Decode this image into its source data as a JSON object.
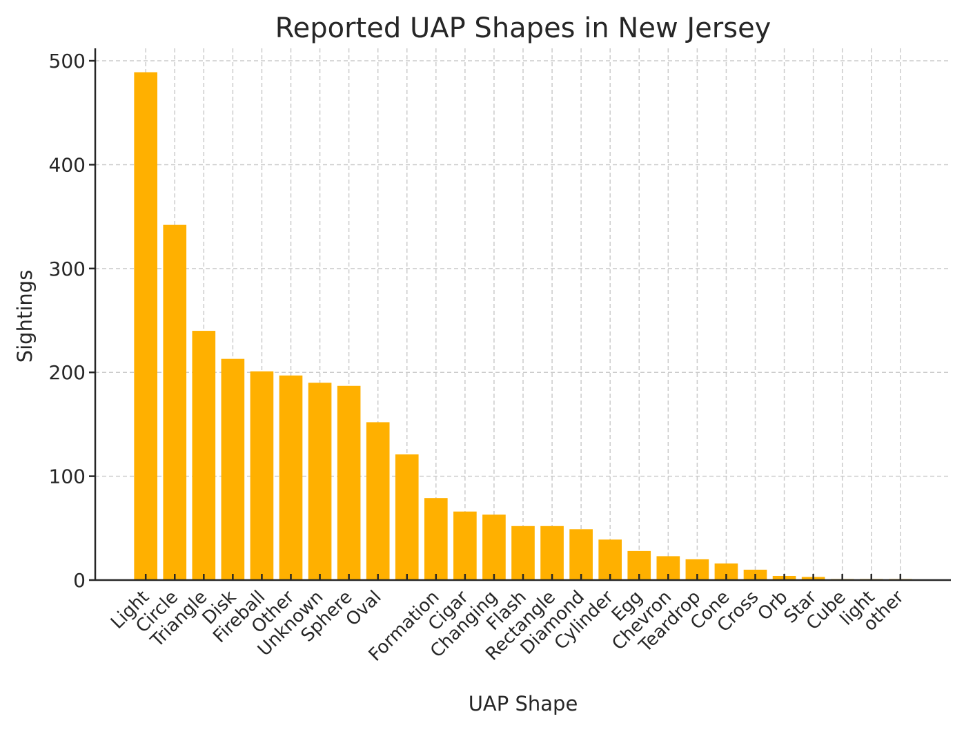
{
  "chart_data": {
    "type": "bar",
    "title": "Reported UAP Shapes in New Jersey",
    "xlabel": "UAP Shape",
    "ylabel": "Sightings",
    "categories": [
      "Light",
      "Circle",
      "Triangle",
      "Disk",
      "Fireball",
      "Other",
      "Unknown",
      "Sphere",
      "Oval",
      "",
      "Formation",
      "Cigar",
      "Changing",
      "Flash",
      "Rectangle",
      "Diamond",
      "Cylinder",
      "Egg",
      "Chevron",
      "Teardrop",
      "Cone",
      "Cross",
      "Orb",
      "Star",
      "Cube",
      "light",
      "other"
    ],
    "values": [
      489,
      342,
      240,
      213,
      201,
      197,
      190,
      187,
      152,
      121,
      79,
      66,
      63,
      52,
      52,
      49,
      39,
      28,
      23,
      20,
      16,
      10,
      4,
      3,
      1,
      1,
      1
    ],
    "ylim": [
      0,
      512
    ],
    "yticks": [
      0,
      100,
      200,
      300,
      400,
      500
    ],
    "grid": true,
    "bar_color": "#FFB000"
  }
}
